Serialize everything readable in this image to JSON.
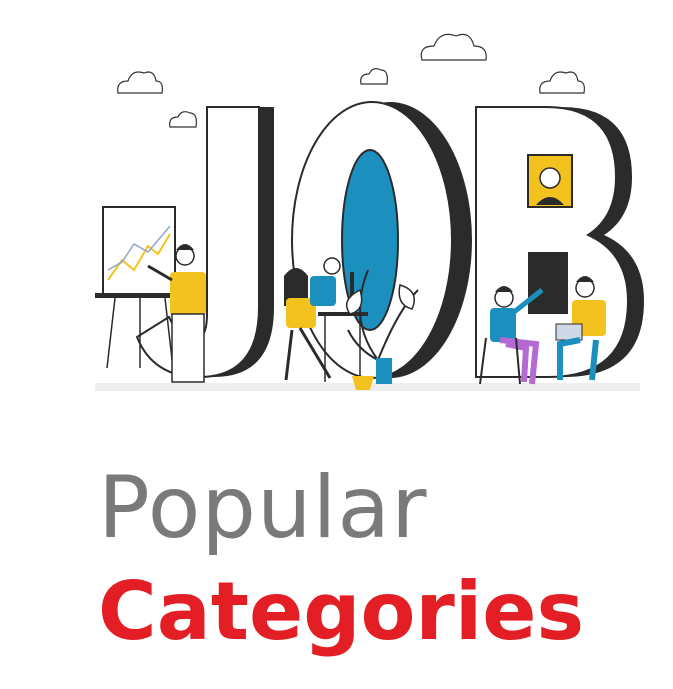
{
  "hero": {
    "word": "JOB",
    "letters": [
      "J",
      "O",
      "B"
    ]
  },
  "headline": {
    "line1": "Popular",
    "line2": "Categories"
  },
  "colors": {
    "letter_dark": "#2b2b2b",
    "letter_blue": "#1b8fbd",
    "accent_yellow": "#f4c21f",
    "headline_gray": "#7a7a7a",
    "headline_red": "#e31e24",
    "floor": "#eeeeee"
  }
}
